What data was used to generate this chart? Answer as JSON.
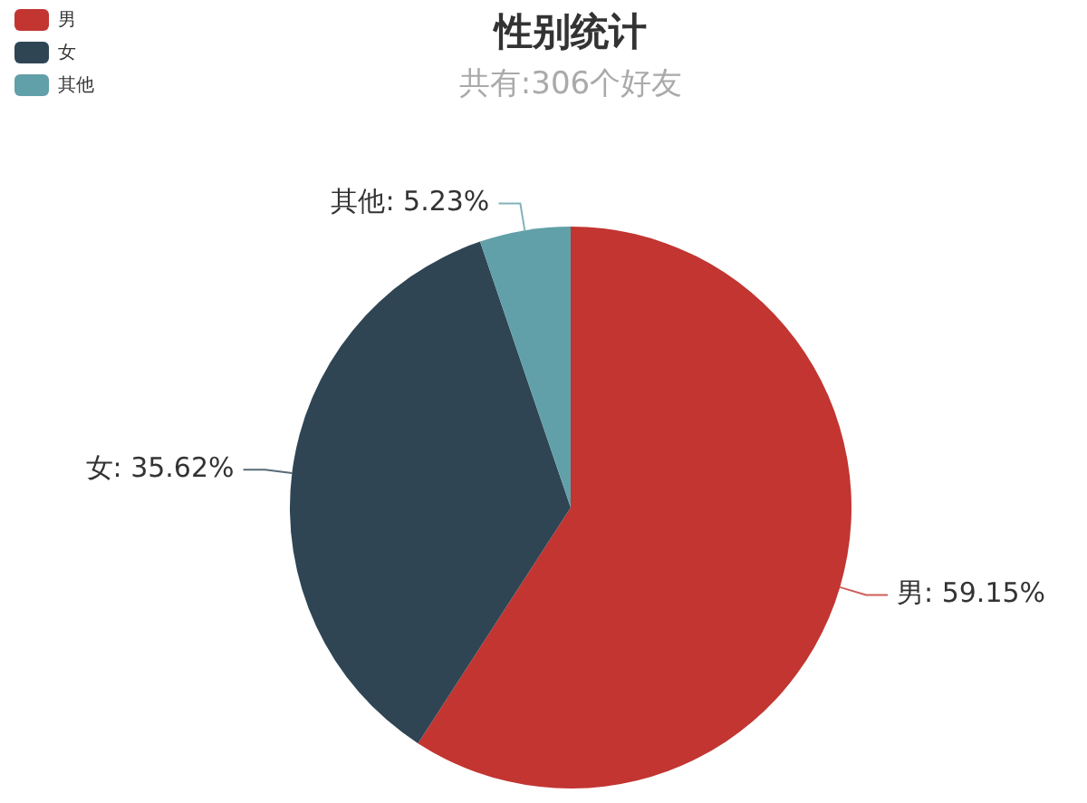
{
  "chart_data": {
    "type": "pie",
    "title": "性别统计",
    "subtitle": "共有:306个好友",
    "categories": [
      "男",
      "女",
      "其他"
    ],
    "values": [
      59.15,
      35.62,
      5.23
    ],
    "colors": [
      "#c23531",
      "#2f4554",
      "#61a0a8"
    ],
    "value_labels": [
      "男: 59.15%",
      "女: 35.62%",
      "其他: 5.23%"
    ],
    "legend": "top left"
  }
}
